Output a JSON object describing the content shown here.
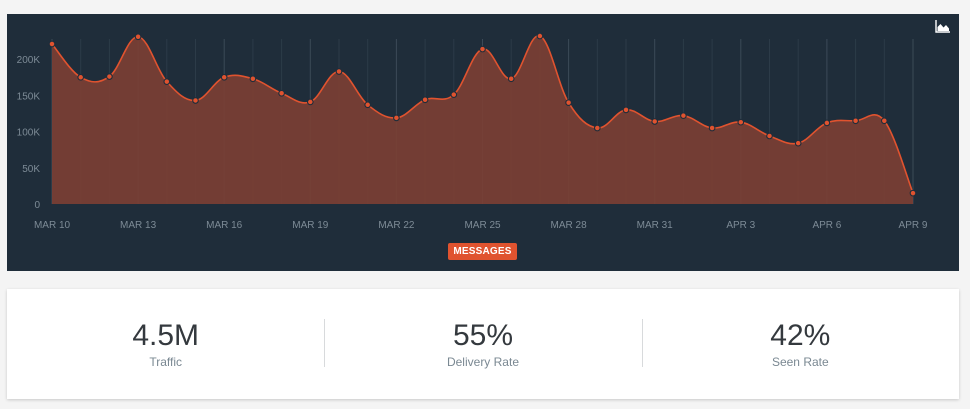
{
  "chart_data": {
    "type": "area",
    "x": [
      "MAR 10",
      "MAR 11",
      "MAR 12",
      "MAR 13",
      "MAR 14",
      "MAR 15",
      "MAR 16",
      "MAR 17",
      "MAR 18",
      "MAR 19",
      "MAR 20",
      "MAR 21",
      "MAR 22",
      "MAR 23",
      "MAR 24",
      "MAR 25",
      "MAR 26",
      "MAR 27",
      "MAR 28",
      "MAR 29",
      "MAR 30",
      "MAR 31",
      "APR 1",
      "APR 2",
      "APR 3",
      "APR 4",
      "APR 5",
      "APR 6",
      "APR 7",
      "APR 8",
      "APR 9"
    ],
    "x_tick_labels": [
      "MAR 10",
      "MAR 13",
      "MAR 16",
      "MAR 19",
      "MAR 22",
      "MAR 25",
      "MAR 28",
      "MAR 31",
      "APR 3",
      "APR 6",
      "APR 9"
    ],
    "series": [
      {
        "name": "MESSAGES",
        "values": [
          221000,
          175000,
          176000,
          231000,
          169000,
          143000,
          175000,
          173000,
          153000,
          141000,
          183000,
          137000,
          119000,
          144000,
          151000,
          214000,
          173000,
          232000,
          140000,
          105000,
          130000,
          114000,
          122000,
          105000,
          113000,
          94000,
          84000,
          112000,
          115000,
          115000,
          15000
        ]
      }
    ],
    "y_tick_labels": [
      "0",
      "50K",
      "100K",
      "150K",
      "200K"
    ],
    "ylim": [
      0,
      250000
    ],
    "grid": "vertical",
    "colors": {
      "line": "#e0532f",
      "fill": "#7b3f34",
      "background": "#1f2d3a"
    }
  },
  "legend": {
    "label": "MESSAGES"
  },
  "toolbar": {
    "icon": "area-chart-icon"
  },
  "stats": [
    {
      "value": "4.5M",
      "label": "Traffic"
    },
    {
      "value": "55%",
      "label": "Delivery Rate"
    },
    {
      "value": "42%",
      "label": "Seen Rate"
    }
  ]
}
